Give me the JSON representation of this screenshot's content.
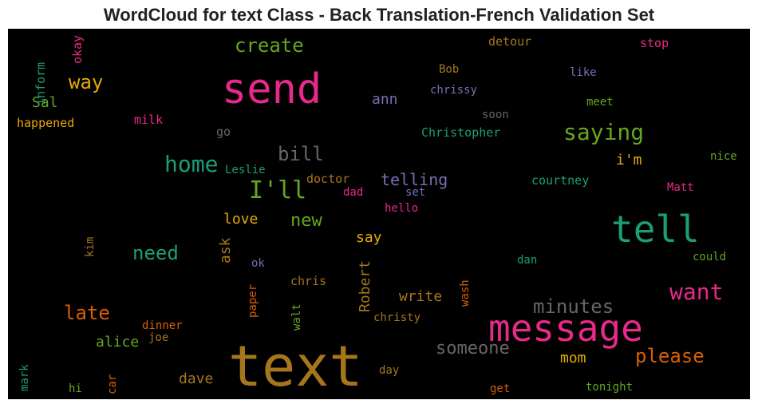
{
  "title": "WordCloud for text Class - Back Translation-French Validation Set",
  "chart_data": {
    "type": "wordcloud",
    "background": "#000000",
    "words": [
      {
        "text": "text",
        "color": "#a6761d"
      },
      {
        "text": "send",
        "color": "#e7298a"
      },
      {
        "text": "message",
        "color": "#e7298a"
      },
      {
        "text": "tell",
        "color": "#1b9e77"
      },
      {
        "text": "I'll",
        "color": "#66a61e"
      },
      {
        "text": "saying",
        "color": "#66a61e"
      },
      {
        "text": "home",
        "color": "#1b9e77"
      },
      {
        "text": "want",
        "color": "#e7298a"
      },
      {
        "text": "create",
        "color": "#66a61e"
      },
      {
        "text": "minutes",
        "color": "#666666"
      },
      {
        "text": "please",
        "color": "#d95f02"
      },
      {
        "text": "someone",
        "color": "#666666"
      },
      {
        "text": "late",
        "color": "#d95f02"
      },
      {
        "text": "way",
        "color": "#e6ab02"
      },
      {
        "text": "bill",
        "color": "#666666"
      },
      {
        "text": "need",
        "color": "#1b9e77"
      },
      {
        "text": "new",
        "color": "#66a61e"
      },
      {
        "text": "telling",
        "color": "#7570b3"
      },
      {
        "text": "Robert",
        "color": "#a6761d"
      },
      {
        "text": "love",
        "color": "#e6ab02"
      },
      {
        "text": "write",
        "color": "#a6761d"
      },
      {
        "text": "alice",
        "color": "#66a61e"
      },
      {
        "text": "mom",
        "color": "#e6ab02"
      },
      {
        "text": "dave",
        "color": "#a6761d"
      },
      {
        "text": "ask",
        "color": "#a6761d"
      },
      {
        "text": "i'm",
        "color": "#e6ab02"
      },
      {
        "text": "say",
        "color": "#e6ab02"
      },
      {
        "text": "Sal",
        "color": "#66a61e"
      },
      {
        "text": "ann",
        "color": "#7570b3"
      },
      {
        "text": "happened",
        "color": "#e6ab02"
      },
      {
        "text": "inform",
        "color": "#1b9e77"
      },
      {
        "text": "okay",
        "color": "#e7298a"
      },
      {
        "text": "milk",
        "color": "#e7298a"
      },
      {
        "text": "go",
        "color": "#666666"
      },
      {
        "text": "Leslie",
        "color": "#1b9e77"
      },
      {
        "text": "doctor",
        "color": "#a6761d"
      },
      {
        "text": "dad",
        "color": "#e7298a"
      },
      {
        "text": "set",
        "color": "#7570b3"
      },
      {
        "text": "hello",
        "color": "#e7298a"
      },
      {
        "text": "detour",
        "color": "#a6761d"
      },
      {
        "text": "stop",
        "color": "#e7298a"
      },
      {
        "text": "Bob",
        "color": "#a6761d"
      },
      {
        "text": "like",
        "color": "#7570b3"
      },
      {
        "text": "chrissy",
        "color": "#7570b3"
      },
      {
        "text": "meet",
        "color": "#66a61e"
      },
      {
        "text": "soon",
        "color": "#666666"
      },
      {
        "text": "Christopher",
        "color": "#1b9e77"
      },
      {
        "text": "nice",
        "color": "#66a61e"
      },
      {
        "text": "courtney",
        "color": "#1b9e77"
      },
      {
        "text": "Matt",
        "color": "#e7298a"
      },
      {
        "text": "could",
        "color": "#66a61e"
      },
      {
        "text": "dan",
        "color": "#1b9e77"
      },
      {
        "text": "wash",
        "color": "#d95f02"
      },
      {
        "text": "chris",
        "color": "#a6761d"
      },
      {
        "text": "ok",
        "color": "#7570b3"
      },
      {
        "text": "paper",
        "color": "#d95f02"
      },
      {
        "text": "walt",
        "color": "#66a61e"
      },
      {
        "text": "christy",
        "color": "#a6761d"
      },
      {
        "text": "kim",
        "color": "#a6761d"
      },
      {
        "text": "dinner",
        "color": "#d95f02"
      },
      {
        "text": "joe",
        "color": "#a6761d"
      },
      {
        "text": "day",
        "color": "#a6761d"
      },
      {
        "text": "get",
        "color": "#d95f02"
      },
      {
        "text": "tonight",
        "color": "#66a61e"
      },
      {
        "text": "mark",
        "color": "#1b9e77"
      },
      {
        "text": "hi",
        "color": "#66a61e"
      },
      {
        "text": "car",
        "color": "#d95f02"
      }
    ]
  }
}
